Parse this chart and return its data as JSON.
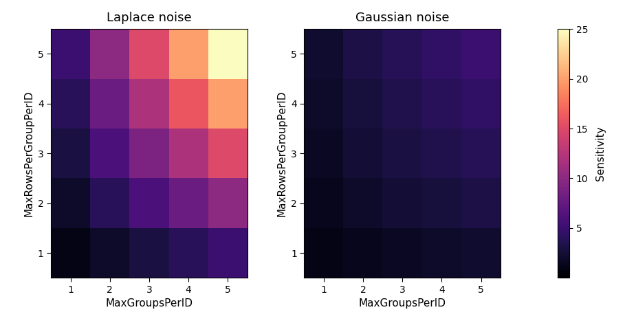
{
  "title_left": "Laplace noise",
  "title_right": "Gaussian noise",
  "xlabel": "MaxGroupsPerID",
  "ylabel": "MaxRowsPerGroupPerID",
  "colorbar_label": "Sensitivity",
  "vmin": 0,
  "vmax": 25,
  "colormap": "magma",
  "tick_values": [
    1,
    2,
    3,
    4,
    5
  ],
  "colorbar_ticks": [
    5,
    10,
    15,
    20,
    25
  ],
  "laplace_data": [
    [
      1,
      2,
      3,
      4,
      5
    ],
    [
      2,
      4,
      6,
      8,
      10
    ],
    [
      3,
      6,
      9,
      12,
      15
    ],
    [
      4,
      8,
      12,
      16,
      20
    ],
    [
      5,
      10,
      15,
      20,
      25
    ]
  ],
  "gaussian_data": [
    [
      1.0,
      1.4142,
      1.7321,
      2.0,
      2.2361
    ],
    [
      1.4142,
      2.0,
      2.4495,
      2.8284,
      3.1623
    ],
    [
      1.7321,
      2.4495,
      3.0,
      3.4641,
      3.873
    ],
    [
      2.0,
      2.8284,
      3.4641,
      4.0,
      4.4721
    ],
    [
      2.2361,
      3.1623,
      3.873,
      4.4721,
      5.0
    ]
  ],
  "figsize": [
    9.25,
    4.7
  ],
  "dpi": 100,
  "background_color": "#ffffff"
}
